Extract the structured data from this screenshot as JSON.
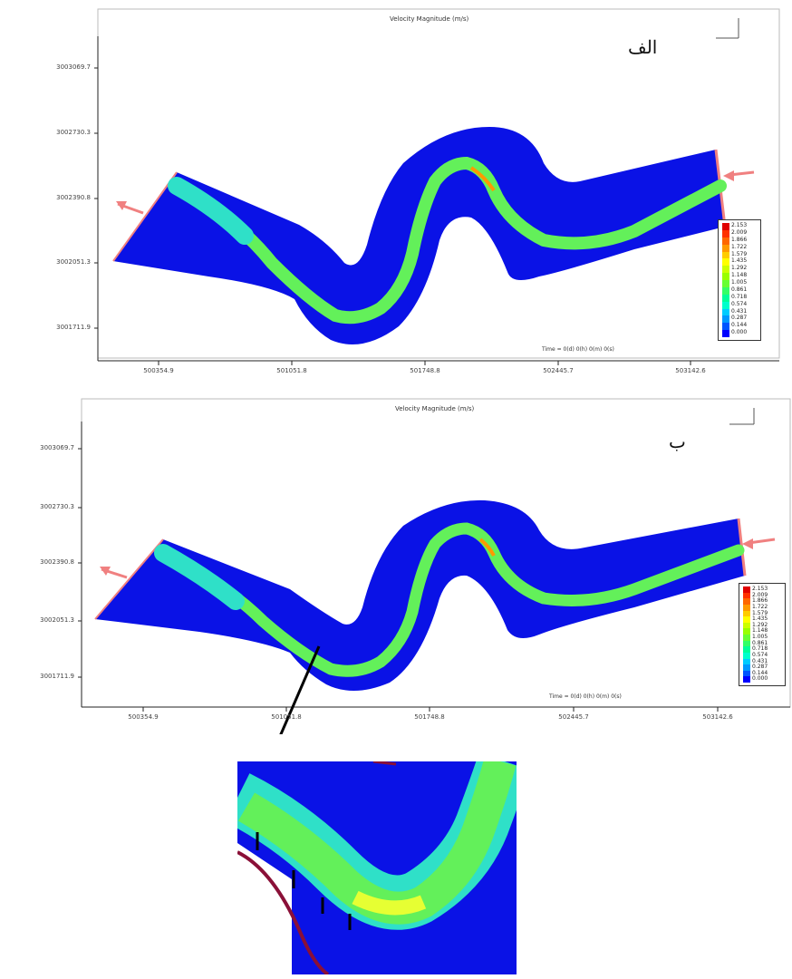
{
  "chart_data": [
    {
      "type": "heatmap",
      "panel_label": "الف",
      "title": "Velocity Magnitude (m/s)",
      "y_ticks": [
        "3003069.7",
        "3002730.3",
        "3002390.8",
        "3002051.3",
        "3001711.9"
      ],
      "x_ticks": [
        "500354.9",
        "501051.8",
        "501748.8",
        "502445.7",
        "503142.6"
      ],
      "time_label": "Time = 0(d) 0(h) 0(m) 0(s)",
      "colorbar": {
        "min": 0.0,
        "max": 2.153,
        "labels": [
          "2.153",
          "2.009",
          "1.866",
          "1.722",
          "1.579",
          "1.435",
          "1.292",
          "1.148",
          "1.005",
          "0.861",
          "0.718",
          "0.574",
          "0.431",
          "0.287",
          "0.144",
          "0.000"
        ],
        "colors": [
          "#e00000",
          "#ff3000",
          "#ff6600",
          "#ff9900",
          "#ffcc00",
          "#ffff00",
          "#ccff00",
          "#99ff00",
          "#66ff33",
          "#33ff66",
          "#00ff99",
          "#00ffcc",
          "#00ccff",
          "#0099ff",
          "#0055ff",
          "#0000ff"
        ]
      }
    },
    {
      "type": "heatmap",
      "panel_label": "ب",
      "title": "Velocity Magnitude (m/s)",
      "y_ticks": [
        "3003069.7",
        "3002730.3",
        "3002390.8",
        "3002051.3",
        "3001711.9"
      ],
      "x_ticks": [
        "500354.9",
        "501051.8",
        "501748.8",
        "502445.7",
        "503142.6"
      ],
      "time_label": "Time = 0(d) 0(h) 0(m) 0(s)",
      "colorbar": {
        "min": 0.0,
        "max": 2.153,
        "labels": [
          "2.153",
          "2.009",
          "1.866",
          "1.722",
          "1.579",
          "1.435",
          "1.292",
          "1.148",
          "1.005",
          "0.861",
          "0.718",
          "0.574",
          "0.431",
          "0.287",
          "0.144",
          "0.000"
        ],
        "colors": [
          "#e00000",
          "#ff3000",
          "#ff6600",
          "#ff9900",
          "#ffcc00",
          "#ffff00",
          "#ccff00",
          "#99ff00",
          "#66ff33",
          "#33ff66",
          "#00ff99",
          "#00ffcc",
          "#00ccff",
          "#0099ff",
          "#0055ff",
          "#0000ff"
        ]
      }
    }
  ],
  "colors": {
    "water": "#0a12e6",
    "core_flow": "#63f05a",
    "edge_flow": "#2fe0c8",
    "inflow_arrow": "#f08080",
    "zoom_arrow": "#000000"
  }
}
